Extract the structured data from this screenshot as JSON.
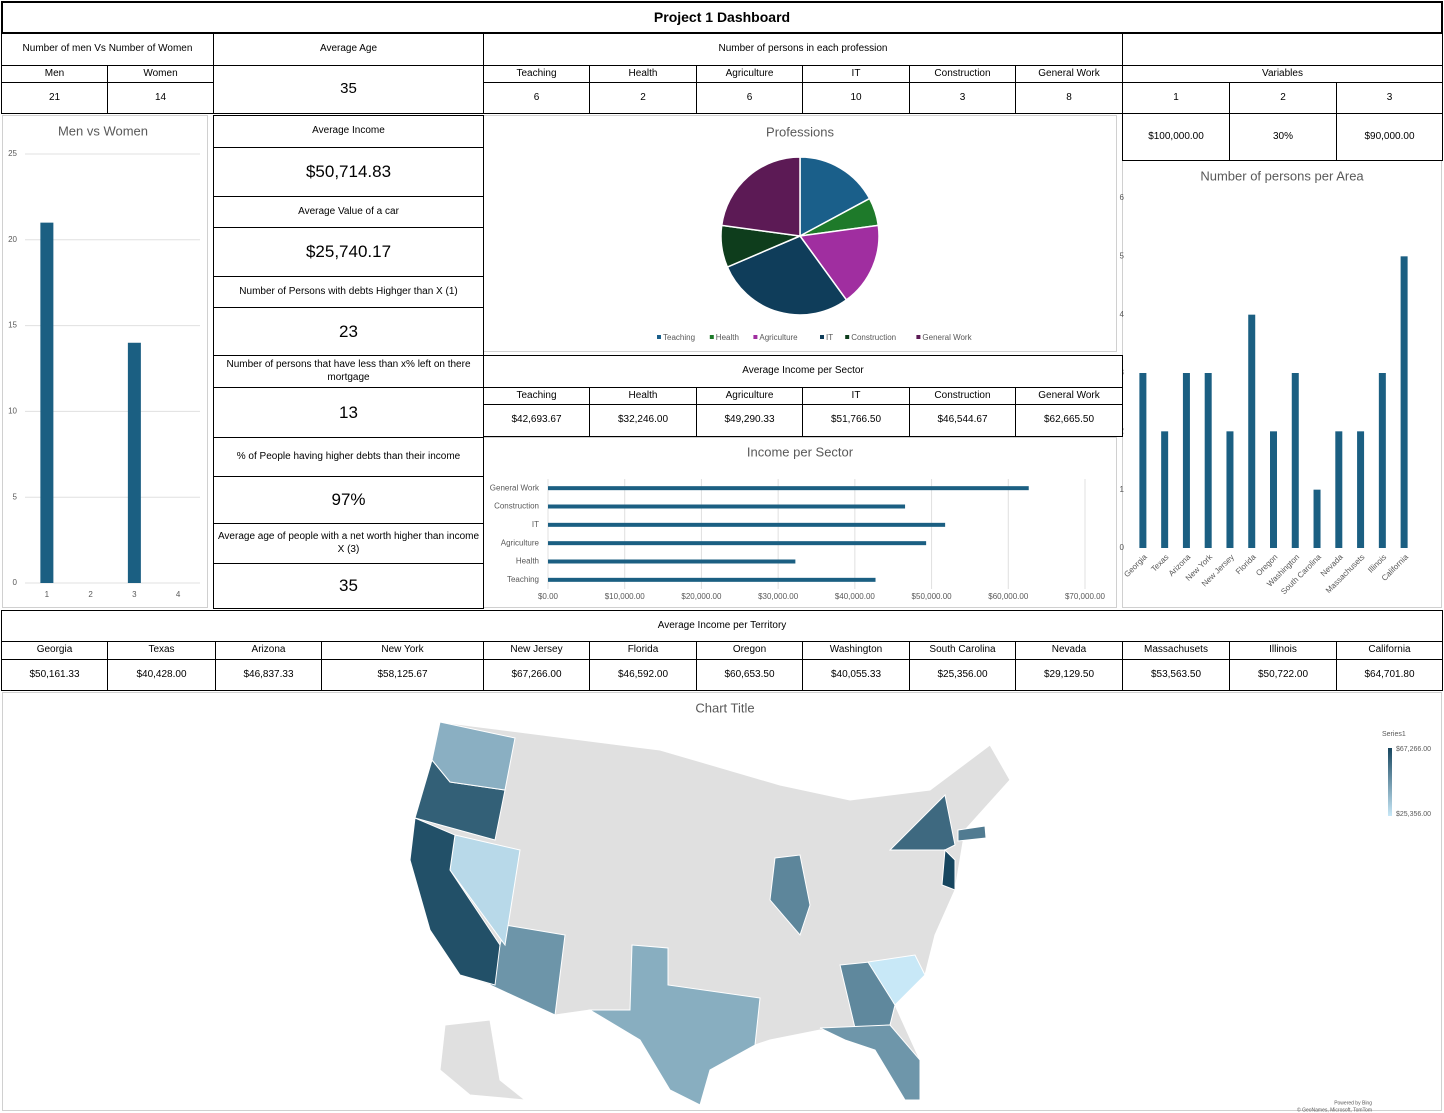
{
  "title": "Project 1 Dashboard",
  "gender": {
    "heading": "Number of men Vs Number of Women",
    "labels": [
      "Men",
      "Women"
    ],
    "values": [
      21,
      14
    ]
  },
  "average_age": {
    "heading": "Average Age",
    "value": 35
  },
  "professions_heading": "Number of persons in each profession",
  "variables": {
    "heading": "Variables",
    "names": [
      1,
      2,
      3
    ],
    "values": [
      "$100,000.00",
      "30%",
      "$90,000.00"
    ]
  },
  "kpis": [
    {
      "label": "Average Income",
      "value": "$50,714.83"
    },
    {
      "label": "Average Value of a car",
      "value": "$25,740.17"
    },
    {
      "label": "Number of Persons with debts Highger than X (1)",
      "value": 23
    },
    {
      "label": "Number of persons that have less than x% left on  there mortgage",
      "value": 13
    },
    {
      "label": "% of People having higher debts than their income",
      "value": "97%"
    },
    {
      "label": "Average age of people with a net worth higher than income X (3)",
      "value": 35
    }
  ],
  "sector_heading": "Average Income per Sector",
  "territory_heading": "Average Income per Territory",
  "map_credits": [
    "Powered by Bing",
    "© GeoNames, Microsoft, TomTom"
  ],
  "chart_data": [
    {
      "type": "bar",
      "title": "Men vs Women",
      "categories": [
        "1",
        "2",
        "3",
        "4"
      ],
      "values": [
        21,
        null,
        14,
        null
      ],
      "ylim": [
        0,
        25
      ],
      "yticks": [
        0,
        5,
        10,
        15,
        20,
        25
      ],
      "grid": true,
      "color": "#1b5f82"
    },
    {
      "type": "pie",
      "title": "Professions",
      "categories": [
        "Teaching",
        "Health",
        "Agriculture",
        "IT",
        "Construction",
        "General Work"
      ],
      "values": [
        6,
        2,
        6,
        10,
        3,
        8
      ],
      "colors": [
        "#1a5f8a",
        "#1e7a2a",
        "#a02ea0",
        "#0f3d5a",
        "#0e3d1c",
        "#5c1a55"
      ],
      "legend": "bottom"
    },
    {
      "type": "hbar",
      "title": "Income per Sector",
      "categories": [
        "Teaching",
        "Health",
        "Agriculture",
        "IT",
        "Construction",
        "General Work"
      ],
      "values": [
        42693.67,
        32246.0,
        49290.33,
        51766.5,
        46544.67,
        62665.5
      ],
      "value_labels": [
        "$42,693.67",
        "$32,246.00",
        "$49,290.33",
        "$51,766.50",
        "$46,544.67",
        "$62,665.50"
      ],
      "xlim": [
        0,
        70000
      ],
      "xticks": [
        {
          "value": 0,
          "label": "$0.00"
        },
        {
          "value": 10000,
          "label": "$10,000.00"
        },
        {
          "value": 20000,
          "label": "$20,000.00"
        },
        {
          "value": 30000,
          "label": "$30,000.00"
        },
        {
          "value": 40000,
          "label": "$40,000.00"
        },
        {
          "value": 50000,
          "label": "$50,000.00"
        },
        {
          "value": 60000,
          "label": "$60,000.00"
        },
        {
          "value": 70000,
          "label": "$70,000.00"
        }
      ],
      "grid": true,
      "color": "#1b5f82"
    },
    {
      "type": "bar",
      "title": "Number of persons per Area",
      "categories": [
        "Georgia",
        "Texas",
        "Arizona",
        "New York",
        "New Jersey",
        "Florida",
        "Oregon",
        "Washington",
        "South Carolina",
        "Nevada",
        "Massachusets",
        "Illinois",
        "California"
      ],
      "values": [
        3,
        2,
        3,
        3,
        2,
        4,
        2,
        3,
        1,
        2,
        2,
        3,
        5
      ],
      "ylim": [
        0,
        6
      ],
      "yticks": [
        0,
        1,
        2,
        3,
        4,
        5,
        6
      ],
      "grid": false,
      "color": "#1b5f82"
    },
    {
      "type": "map",
      "title": "Chart Title",
      "legend_title": "Series1",
      "categories": [
        "Georgia",
        "Texas",
        "Arizona",
        "New York",
        "New Jersey",
        "Florida",
        "Oregon",
        "Washington",
        "South Carolina",
        "Nevada",
        "Massachusets",
        "Illinois",
        "California"
      ],
      "values": [
        50161.33,
        40428.0,
        46837.33,
        58125.67,
        67266.0,
        46592.0,
        60653.5,
        40055.33,
        25356.0,
        29129.5,
        53563.5,
        50722.0,
        64701.8
      ],
      "value_labels": [
        "$50,161.33",
        "$40,428.00",
        "$46,837.33",
        "$58,125.67",
        "$67,266.00",
        "$46,592.00",
        "$60,653.50",
        "$40,055.33",
        "$25,356.00",
        "$29,129.50",
        "$53,563.50",
        "$50,722.00",
        "$64,701.80"
      ],
      "colors": [
        "#c8e8f7",
        "#17465f"
      ]
    }
  ]
}
